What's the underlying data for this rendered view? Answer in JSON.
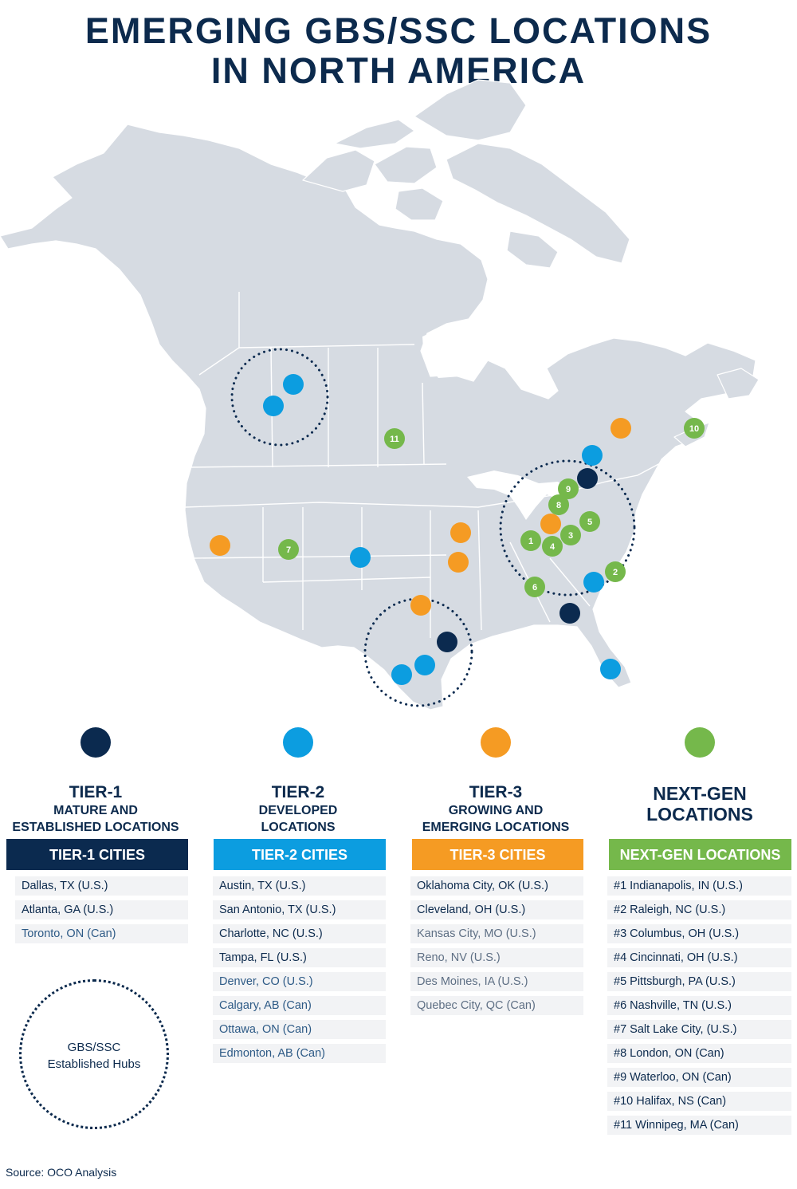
{
  "title": {
    "line1": "EMERGING GBS/SSC LOCATIONS",
    "line2": "IN NORTH AMERICA"
  },
  "colors": {
    "tier1": "#0b2a4f",
    "tier2": "#0c9de0",
    "tier3": "#f59b23",
    "nextgen": "#75b84b",
    "land": "#d6dbe2",
    "border": "#ffffff"
  },
  "map": {
    "markers": {
      "tier1": [
        "Dallas",
        "Atlanta",
        "Toronto"
      ],
      "tier2": [
        "Austin",
        "San Antonio",
        "Charlotte",
        "Tampa",
        "Denver",
        "Calgary",
        "Ottawa",
        "Edmonton"
      ],
      "tier3": [
        "Oklahoma City",
        "Cleveland",
        "Kansas City",
        "Reno",
        "Des Moines",
        "Quebec City"
      ],
      "nextgen_numbers": [
        "1",
        "2",
        "3",
        "4",
        "5",
        "6",
        "7",
        "8",
        "9",
        "10",
        "11"
      ]
    },
    "hubs": [
      "Alberta",
      "Texas",
      "Great Lakes"
    ]
  },
  "legend": {
    "tier1": {
      "name": "TIER-1",
      "line1": "MATURE AND",
      "line2": "ESTABLISHED LOCATIONS"
    },
    "tier2": {
      "name": "TIER-2",
      "line1": "DEVELOPED",
      "line2": "LOCATIONS"
    },
    "tier3": {
      "name": "TIER-3",
      "line1": "GROWING AND",
      "line2": "EMERGING LOCATIONS"
    },
    "nextgen": {
      "line1": "NEXT-GEN",
      "line2": "LOCATIONS"
    }
  },
  "columns": {
    "tier1": {
      "header": "TIER-1 CITIES",
      "cities": [
        "Dallas, TX (U.S.)",
        "Atlanta, GA (U.S.)",
        "Toronto, ON (Can)"
      ]
    },
    "tier2": {
      "header": "TIER-2 CITIES",
      "cities": [
        "Austin, TX (U.S.)",
        "San Antonio, TX (U.S.)",
        "Charlotte, NC (U.S.)",
        "Tampa, FL (U.S.)",
        "Denver, CO (U.S.)",
        "Calgary, AB (Can)",
        "Ottawa, ON (Can)",
        "Edmonton, AB (Can)"
      ]
    },
    "tier3": {
      "header": "TIER-3 CITIES",
      "cities": [
        "Oklahoma City, OK (U.S.)",
        "Cleveland, OH (U.S.)",
        "Kansas City, MO (U.S.)",
        "Reno, NV (U.S.)",
        "Des Moines, IA (U.S.)",
        "Quebec City, QC (Can)"
      ]
    },
    "nextgen": {
      "header": "NEXT-GEN LOCATIONS",
      "cities": [
        "#1 Indianapolis, IN (U.S.)",
        "#2 Raleigh, NC (U.S.)",
        "#3 Columbus, OH (U.S.)",
        "#4 Cincinnati, OH (U.S.)",
        "#5 Pittsburgh, PA (U.S.)",
        "#6 Nashville, TN (U.S.)",
        "#7 Salt Lake City, (U.S.)",
        "#8 London, ON (Can)",
        "#9 Waterloo, ON (Can)",
        "#10 Halifax, NS (Can)",
        "#11 Winnipeg, MA (Can)"
      ]
    }
  },
  "hub_legend": {
    "line1": "GBS/SSC",
    "line2": "Established Hubs"
  },
  "source": "Source: OCO Analysis"
}
